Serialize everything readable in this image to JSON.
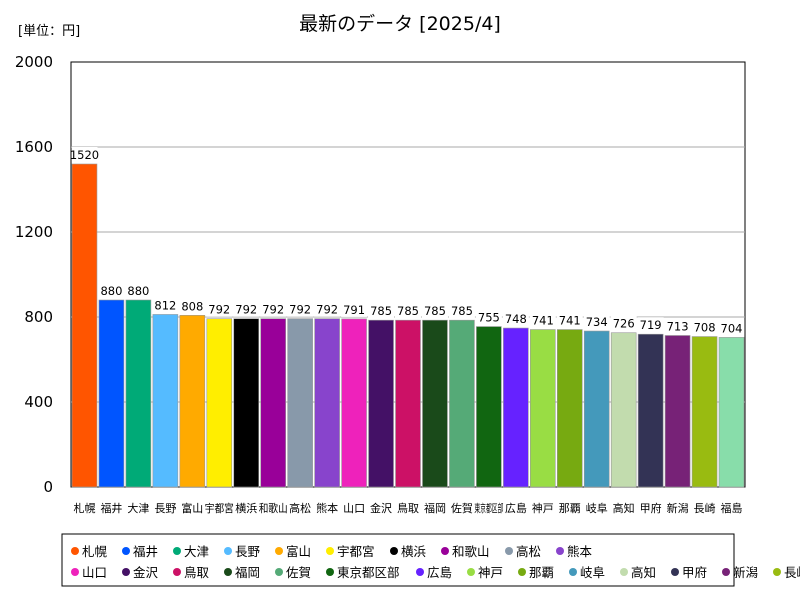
{
  "chart_data": {
    "type": "bar",
    "title": "最新のデータ [2025/4]",
    "unit_label": "[単位：円]",
    "xlabel": "",
    "ylabel": "",
    "ylim": [
      0,
      2000
    ],
    "yticks": [
      "0",
      "400",
      "800",
      "1200",
      "1600",
      "2000"
    ],
    "grid": true,
    "legend_position": "bottom",
    "categories": [
      "札幌",
      "福井",
      "大津",
      "長野",
      "富山",
      "宇都宮",
      "横浜",
      "和歌山",
      "高松",
      "熊本",
      "山口",
      "金沢",
      "鳥取",
      "福岡",
      "佐賀",
      "東京都区部",
      "広島",
      "神戸",
      "那覇",
      "岐阜",
      "高知",
      "甲府",
      "新潟",
      "長崎",
      "福島"
    ],
    "values": [
      1520,
      880,
      880,
      812,
      808,
      792,
      792,
      792,
      792,
      792,
      791,
      785,
      785,
      785,
      785,
      755,
      748,
      741,
      741,
      734,
      726,
      719,
      713,
      708,
      704
    ],
    "colors": [
      "#ff5500",
      "#0055ff",
      "#00aa77",
      "#55bbff",
      "#ffaa00",
      "#ffee00",
      "#000000",
      "#990099",
      "#8899aa",
      "#8844cc",
      "#ee22bb",
      "#441166",
      "#cc1166",
      "#1a4a1a",
      "#55aa77",
      "#116611",
      "#6622ff",
      "#99dd44",
      "#77aa11",
      "#4499bb",
      "#c2dcae",
      "#333355",
      "#772277",
      "#99bb11",
      "#88ddaa"
    ]
  }
}
